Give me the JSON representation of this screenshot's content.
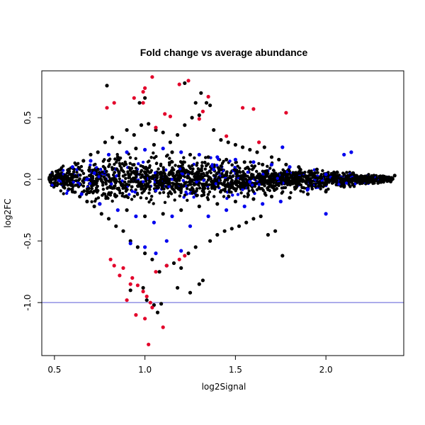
{
  "chart_data": {
    "type": "scatter",
    "title": "Fold change vs average abundance",
    "xlabel": "log2Signal",
    "ylabel": "log2FC",
    "xlim": [
      0.43,
      2.43
    ],
    "ylim": [
      -1.43,
      0.88
    ],
    "xticks": [
      0.5,
      1.0,
      1.5,
      2.0
    ],
    "xtick_labels": [
      "0.5",
      "1.0",
      "1.5",
      "2.0"
    ],
    "yticks": [
      0.5,
      0.0,
      -0.5,
      -1.0
    ],
    "ytick_labels": [
      "0.5",
      "0.0",
      "-0.5",
      "-1.0"
    ],
    "grid": false,
    "reference_line": {
      "axis": "y",
      "value": -1.0,
      "color": "#5b5bd6"
    },
    "series": [
      {
        "color": "#000000",
        "points": [
          [
            0.48,
            0.02
          ],
          [
            0.5,
            -0.03
          ],
          [
            0.52,
            0.05
          ],
          [
            0.55,
            -0.06
          ],
          [
            0.58,
            0.08
          ],
          [
            0.6,
            -0.1
          ],
          [
            0.62,
            0.12
          ],
          [
            0.64,
            -0.14
          ],
          [
            0.66,
            0.15
          ],
          [
            0.68,
            -0.18
          ],
          [
            0.7,
            0.2
          ],
          [
            0.72,
            -0.22
          ],
          [
            0.74,
            0.22
          ],
          [
            0.76,
            -0.28
          ],
          [
            0.78,
            0.3
          ],
          [
            0.8,
            -0.32
          ],
          [
            0.82,
            0.34
          ],
          [
            0.84,
            -0.38
          ],
          [
            0.86,
            0.3
          ],
          [
            0.88,
            -0.42
          ],
          [
            0.9,
            0.4
          ],
          [
            0.92,
            -0.5
          ],
          [
            0.94,
            0.36
          ],
          [
            0.96,
            -0.55
          ],
          [
            0.98,
            0.44
          ],
          [
            1.0,
            -0.6
          ],
          [
            1.02,
            0.45
          ],
          [
            1.04,
            -0.65
          ],
          [
            1.06,
            0.4
          ],
          [
            1.08,
            -0.75
          ],
          [
            1.1,
            0.38
          ],
          [
            1.12,
            -0.7
          ],
          [
            1.14,
            0.3
          ],
          [
            1.16,
            -0.68
          ],
          [
            1.18,
            0.36
          ],
          [
            1.2,
            -0.72
          ],
          [
            1.22,
            0.44
          ],
          [
            1.24,
            -0.6
          ],
          [
            1.26,
            0.5
          ],
          [
            1.28,
            -0.55
          ],
          [
            1.3,
            0.52
          ],
          [
            1.32,
            -0.82
          ],
          [
            1.34,
            0.62
          ],
          [
            1.36,
            -0.5
          ],
          [
            1.38,
            0.4
          ],
          [
            1.4,
            -0.45
          ],
          [
            1.42,
            0.32
          ],
          [
            1.44,
            -0.42
          ],
          [
            1.46,
            0.3
          ],
          [
            1.48,
            -0.4
          ],
          [
            1.5,
            0.28
          ],
          [
            1.52,
            -0.38
          ],
          [
            1.54,
            0.26
          ],
          [
            1.56,
            -0.35
          ],
          [
            1.58,
            0.24
          ],
          [
            1.6,
            -0.32
          ],
          [
            1.62,
            0.22
          ],
          [
            1.64,
            -0.3
          ],
          [
            1.66,
            0.26
          ],
          [
            1.68,
            -0.45
          ],
          [
            1.7,
            0.18
          ],
          [
            1.72,
            -0.42
          ],
          [
            1.74,
            0.16
          ],
          [
            1.76,
            -0.62
          ],
          [
            1.78,
            0.12
          ],
          [
            1.8,
            -0.15
          ],
          [
            1.85,
            0.1
          ],
          [
            1.9,
            -0.12
          ],
          [
            1.95,
            0.08
          ],
          [
            2.0,
            -0.1
          ],
          [
            2.05,
            0.05
          ],
          [
            2.1,
            -0.06
          ],
          [
            2.15,
            0.05
          ],
          [
            2.2,
            -0.03
          ],
          [
            2.25,
            0.02
          ],
          [
            2.3,
            0.01
          ],
          [
            2.35,
            -0.01
          ],
          [
            2.38,
            0.03
          ],
          [
            0.79,
            0.76
          ],
          [
            1.22,
            0.78
          ],
          [
            1.31,
            0.7
          ],
          [
            1.28,
            0.62
          ],
          [
            1.36,
            0.6
          ],
          [
            1.0,
            0.66
          ],
          [
            0.97,
            0.62
          ],
          [
            1.01,
            -0.98
          ],
          [
            1.05,
            -1.02
          ],
          [
            1.09,
            -1.01
          ],
          [
            1.07,
            -1.08
          ],
          [
            0.99,
            -0.88
          ],
          [
            0.92,
            -0.9
          ],
          [
            1.18,
            -0.88
          ],
          [
            1.25,
            -0.92
          ],
          [
            1.3,
            -0.85
          ],
          [
            0.75,
            -0.2
          ],
          [
            0.8,
            -0.12
          ],
          [
            0.85,
            0.18
          ],
          [
            0.9,
            -0.25
          ],
          [
            0.95,
            0.25
          ],
          [
            1.0,
            -0.3
          ],
          [
            1.05,
            0.28
          ],
          [
            1.1,
            -0.28
          ],
          [
            1.15,
            0.22
          ],
          [
            1.2,
            -0.25
          ],
          [
            1.25,
            0.2
          ],
          [
            1.3,
            -0.22
          ],
          [
            1.35,
            0.18
          ],
          [
            1.4,
            -0.2
          ],
          [
            1.45,
            0.16
          ],
          [
            1.5,
            -0.18
          ],
          [
            1.55,
            0.14
          ],
          [
            1.6,
            -0.16
          ],
          [
            1.65,
            0.12
          ],
          [
            1.7,
            -0.14
          ]
        ]
      },
      {
        "color": "#0000ee",
        "points": [
          [
            0.6,
            0.1
          ],
          [
            0.65,
            -0.12
          ],
          [
            0.7,
            0.15
          ],
          [
            0.75,
            -0.2
          ],
          [
            0.8,
            0.2
          ],
          [
            0.85,
            -0.25
          ],
          [
            0.9,
            0.22
          ],
          [
            0.95,
            -0.3
          ],
          [
            1.0,
            0.24
          ],
          [
            1.05,
            -0.35
          ],
          [
            1.1,
            0.25
          ],
          [
            1.15,
            -0.3
          ],
          [
            1.2,
            0.22
          ],
          [
            1.25,
            -0.38
          ],
          [
            1.3,
            0.2
          ],
          [
            1.35,
            -0.3
          ],
          [
            1.4,
            0.18
          ],
          [
            1.45,
            -0.25
          ],
          [
            1.5,
            0.16
          ],
          [
            1.55,
            -0.22
          ],
          [
            1.6,
            0.14
          ],
          [
            1.65,
            -0.2
          ],
          [
            1.7,
            0.12
          ],
          [
            1.75,
            -0.18
          ],
          [
            1.8,
            0.1
          ],
          [
            1.9,
            -0.08
          ],
          [
            2.0,
            0.04
          ],
          [
            2.1,
            0.2
          ],
          [
            2.14,
            0.22
          ],
          [
            2.0,
            -0.28
          ],
          [
            0.92,
            -0.52
          ],
          [
            1.0,
            -0.55
          ],
          [
            1.06,
            -0.6
          ],
          [
            1.12,
            -0.5
          ],
          [
            1.2,
            -0.58
          ],
          [
            0.68,
            0.0
          ],
          [
            0.72,
            0.05
          ],
          [
            1.38,
            0.08
          ],
          [
            1.58,
            -0.02
          ],
          [
            1.76,
            0.26
          ]
        ]
      },
      {
        "color": "#e3002a",
        "points": [
          [
            1.04,
            0.83
          ],
          [
            1.0,
            0.74
          ],
          [
            0.99,
            0.71
          ],
          [
            0.94,
            0.66
          ],
          [
            0.99,
            0.62
          ],
          [
            0.83,
            0.62
          ],
          [
            0.79,
            0.58
          ],
          [
            1.24,
            0.8
          ],
          [
            1.19,
            0.77
          ],
          [
            1.35,
            0.67
          ],
          [
            1.54,
            0.58
          ],
          [
            1.6,
            0.57
          ],
          [
            1.78,
            0.54
          ],
          [
            1.11,
            0.53
          ],
          [
            1.14,
            0.51
          ],
          [
            1.32,
            0.55
          ],
          [
            1.3,
            0.49
          ],
          [
            1.06,
            0.42
          ],
          [
            1.45,
            0.35
          ],
          [
            1.63,
            0.3
          ],
          [
            0.81,
            -0.65
          ],
          [
            0.83,
            -0.7
          ],
          [
            0.88,
            -0.72
          ],
          [
            0.93,
            -0.8
          ],
          [
            0.96,
            -0.86
          ],
          [
            0.99,
            -0.91
          ],
          [
            1.01,
            -0.95
          ],
          [
            1.03,
            -1.0
          ],
          [
            1.04,
            -1.04
          ],
          [
            0.95,
            -1.1
          ],
          [
            1.1,
            -1.2
          ],
          [
            1.02,
            -1.34
          ],
          [
            1.0,
            -1.13
          ],
          [
            1.06,
            -0.75
          ],
          [
            1.12,
            -0.7
          ],
          [
            1.19,
            -0.65
          ],
          [
            1.22,
            -0.62
          ],
          [
            0.9,
            -0.98
          ],
          [
            0.92,
            -0.85
          ],
          [
            0.86,
            -0.78
          ]
        ]
      }
    ]
  }
}
